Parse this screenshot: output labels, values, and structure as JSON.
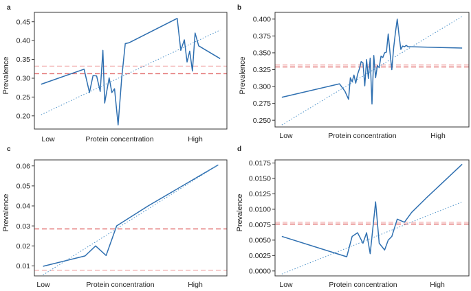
{
  "colors": {
    "series": "#2e6fb0",
    "trend": "#4a90c8",
    "ref_strong": "#e06666",
    "ref_light": "#f3b3b3"
  },
  "chart_data": [
    {
      "type": "line",
      "panel_label": "a",
      "title": "",
      "xlabel": "Protein concentration",
      "ylabel": "Prevalence",
      "x_category_labels": [
        "Low",
        "Protein concentration",
        "High"
      ],
      "xlim": [
        0,
        1
      ],
      "ylim": [
        0.165,
        0.475
      ],
      "yticks": [
        0.2,
        0.25,
        0.3,
        0.35,
        0.4,
        0.45
      ],
      "ytick_labels": [
        "0.20",
        "0.25",
        "0.30",
        "0.35",
        "0.40",
        "0.45"
      ],
      "series": [
        {
          "name": "prevalence",
          "x": [
            0.0,
            0.24,
            0.27,
            0.29,
            0.31,
            0.33,
            0.345,
            0.355,
            0.38,
            0.395,
            0.41,
            0.43,
            0.45,
            0.47,
            0.49,
            0.76,
            0.78,
            0.8,
            0.815,
            0.83,
            0.845,
            0.86,
            0.88,
            1.0
          ],
          "values": [
            0.284,
            0.324,
            0.262,
            0.307,
            0.306,
            0.265,
            0.374,
            0.234,
            0.301,
            0.262,
            0.272,
            0.176,
            0.3,
            0.392,
            0.394,
            0.459,
            0.374,
            0.402,
            0.343,
            0.372,
            0.319,
            0.42,
            0.386,
            0.352
          ]
        },
        {
          "name": "trend",
          "x": [
            0.0,
            1.0
          ],
          "values": [
            0.203,
            0.428
          ]
        }
      ],
      "reference_lines": [
        {
          "y": 0.332,
          "style": "light"
        },
        {
          "y": 0.312,
          "style": "strong"
        }
      ]
    },
    {
      "type": "line",
      "panel_label": "b",
      "title": "",
      "xlabel": "Protein concentration",
      "ylabel": "Prevalence",
      "x_category_labels": [
        "Low",
        "Protein concentration",
        "High"
      ],
      "xlim": [
        0,
        1
      ],
      "ylim": [
        0.24,
        0.41
      ],
      "yticks": [
        0.25,
        0.275,
        0.3,
        0.325,
        0.35,
        0.375,
        0.4
      ],
      "ytick_labels": [
        "0.250",
        "0.275",
        "0.300",
        "0.325",
        "0.350",
        "0.375",
        "0.400"
      ],
      "series": [
        {
          "name": "prevalence",
          "x": [
            0.0,
            0.32,
            0.35,
            0.37,
            0.38,
            0.39,
            0.4,
            0.41,
            0.42,
            0.43,
            0.44,
            0.45,
            0.46,
            0.47,
            0.48,
            0.49,
            0.5,
            0.51,
            0.52,
            0.53,
            0.54,
            0.55,
            0.56,
            0.57,
            0.58,
            0.59,
            0.6,
            0.61,
            0.62,
            0.63,
            0.64,
            0.65,
            0.66,
            0.67,
            0.68,
            0.69,
            0.7,
            0.72,
            1.0
          ],
          "values": [
            0.284,
            0.304,
            0.293,
            0.281,
            0.313,
            0.307,
            0.317,
            0.305,
            0.318,
            0.326,
            0.337,
            0.335,
            0.301,
            0.34,
            0.312,
            0.342,
            0.274,
            0.346,
            0.313,
            0.331,
            0.328,
            0.345,
            0.343,
            0.35,
            0.351,
            0.378,
            0.35,
            0.325,
            0.357,
            0.38,
            0.4,
            0.376,
            0.355,
            0.36,
            0.359,
            0.361,
            0.359,
            0.359,
            0.357
          ]
        },
        {
          "name": "trend",
          "x": [
            0.0,
            1.0
          ],
          "values": [
            0.243,
            0.404
          ]
        }
      ],
      "reference_lines": [
        {
          "y": 0.332,
          "style": "light"
        },
        {
          "y": 0.329,
          "style": "strong"
        }
      ]
    },
    {
      "type": "line",
      "panel_label": "c",
      "title": "",
      "xlabel": "Protein concentration",
      "ylabel": "Prevalence",
      "x_category_labels": [
        "Low",
        "Protein concentration",
        "High"
      ],
      "xlim": [
        0,
        1
      ],
      "ylim": [
        0.005,
        0.063
      ],
      "yticks": [
        0.01,
        0.02,
        0.03,
        0.04,
        0.05,
        0.06
      ],
      "ytick_labels": [
        "0.01",
        "0.02",
        "0.03",
        "0.04",
        "0.05",
        "0.06"
      ],
      "series": [
        {
          "name": "prevalence",
          "x": [
            0.0,
            0.24,
            0.3,
            0.36,
            0.42,
            0.6,
            1.0
          ],
          "values": [
            0.0098,
            0.015,
            0.02,
            0.0152,
            0.03,
            0.04,
            0.0605
          ]
        },
        {
          "name": "trend",
          "x": [
            0.0,
            1.0
          ],
          "values": [
            0.0055,
            0.0605
          ]
        }
      ],
      "reference_lines": [
        {
          "y": 0.0285,
          "style": "strong"
        },
        {
          "y": 0.0078,
          "style": "light"
        }
      ]
    },
    {
      "type": "line",
      "panel_label": "d",
      "title": "",
      "xlabel": "Protein concentration",
      "ylabel": "Prevalence",
      "x_category_labels": [
        "Low",
        "Protein concentration",
        "High"
      ],
      "xlim": [
        0,
        1
      ],
      "ylim": [
        -0.0008,
        0.018
      ],
      "yticks": [
        0.0,
        0.0025,
        0.005,
        0.0075,
        0.01,
        0.0125,
        0.015,
        0.0175
      ],
      "ytick_labels": [
        "0.0000",
        "0.0025",
        "0.0050",
        "0.0075",
        "0.0100",
        "0.0125",
        "0.0150",
        "0.0175"
      ],
      "series": [
        {
          "name": "prevalence",
          "x": [
            0.0,
            0.36,
            0.39,
            0.42,
            0.45,
            0.47,
            0.49,
            0.52,
            0.54,
            0.57,
            0.59,
            0.61,
            0.64,
            0.68,
            0.72,
            0.8,
            1.0
          ],
          "values": [
            0.0056,
            0.0023,
            0.0056,
            0.0062,
            0.0045,
            0.0062,
            0.0028,
            0.0112,
            0.0045,
            0.0034,
            0.005,
            0.0056,
            0.0084,
            0.0079,
            0.0095,
            0.0118,
            0.0173
          ]
        },
        {
          "name": "trend",
          "x": [
            0.0,
            1.0
          ],
          "values": [
            -0.0005,
            0.0112
          ]
        }
      ],
      "reference_lines": [
        {
          "y": 0.0079,
          "style": "light"
        },
        {
          "y": 0.0076,
          "style": "strong"
        }
      ]
    }
  ]
}
